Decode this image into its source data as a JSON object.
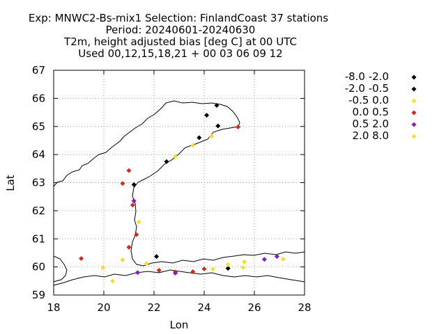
{
  "chart_data": {
    "type": "scatter",
    "title_lines": [
      "Exp: MNWC2-Bs-mix1   Selection: FinlandCoast     37 stations",
      "Period: 20240601-20240630",
      "T2m, height adjusted bias [deg C] at  00 UTC",
      "Used 00,12,15,18,21 + 00 03 06 09 12"
    ],
    "xlabel": "Lon",
    "ylabel": "Lat",
    "xlim": [
      18,
      28
    ],
    "ylim": [
      59,
      67
    ],
    "xticks": [
      18,
      20,
      22,
      24,
      26,
      28
    ],
    "yticks": [
      59,
      60,
      61,
      62,
      63,
      64,
      65,
      66,
      67
    ],
    "grid": true,
    "legend_placement": "right",
    "series": [
      {
        "name": "-8.0 -2.0",
        "color": "#000000",
        "points": [
          [
            24.5,
            65.75
          ]
        ]
      },
      {
        "name": "-2.0 -0.5",
        "color": "#000000",
        "points": [
          [
            24.1,
            65.4
          ],
          [
            24.55,
            65.02
          ],
          [
            23.8,
            64.6
          ],
          [
            22.5,
            63.75
          ],
          [
            21.2,
            62.93
          ],
          [
            22.1,
            60.37
          ],
          [
            24.95,
            59.95
          ]
        ]
      },
      {
        "name": "-0.5 0.0",
        "color": "#f0e030",
        "points": [
          [
            24.3,
            64.65
          ],
          [
            23.55,
            64.33
          ],
          [
            22.85,
            63.93
          ],
          [
            21.4,
            61.6
          ],
          [
            20.75,
            60.25
          ],
          [
            21.7,
            60.12
          ],
          [
            19.97,
            59.97
          ],
          [
            20.35,
            59.5
          ],
          [
            24.35,
            59.92
          ],
          [
            24.95,
            60.08
          ],
          [
            25.6,
            60.18
          ],
          [
            25.55,
            59.98
          ],
          [
            27.15,
            60.28
          ]
        ]
      },
      {
        "name": "0.0 0.5",
        "color": "#d42a1e",
        "points": [
          [
            25.35,
            64.98
          ],
          [
            21.0,
            63.43
          ],
          [
            20.75,
            62.97
          ],
          [
            21.15,
            62.2
          ],
          [
            21.3,
            61.15
          ],
          [
            21.0,
            60.7
          ],
          [
            19.1,
            60.3
          ],
          [
            22.2,
            59.88
          ],
          [
            22.85,
            59.82
          ],
          [
            23.55,
            59.83
          ],
          [
            24.0,
            59.93
          ]
        ]
      },
      {
        "name": "0.5 2.0",
        "color": "#8a18c8",
        "points": [
          [
            21.2,
            62.35
          ],
          [
            21.35,
            59.8
          ],
          [
            22.85,
            59.78
          ],
          [
            26.4,
            60.27
          ],
          [
            26.9,
            60.37
          ]
        ]
      },
      {
        "name": "2.0 8.0",
        "color": "#f0e030",
        "points": []
      }
    ]
  }
}
